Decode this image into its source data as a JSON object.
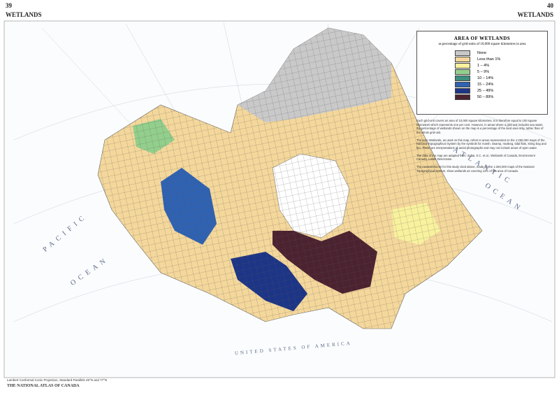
{
  "header": {
    "left_page": "39",
    "left_title": "WETLANDS",
    "right_page": "40",
    "right_title": "WETLANDS"
  },
  "legend": {
    "title": "AREA OF WETLANDS",
    "subtitle": "as percentage of grid-units of 10,000 square kilometres in area",
    "items": [
      {
        "label": "None",
        "color": "#c9c9c9"
      },
      {
        "label": "Less than 1%",
        "color": "#f4d79b"
      },
      {
        "label": "1 – 4%",
        "color": "#f8f29e"
      },
      {
        "label": "5 – 9%",
        "color": "#93cf8c"
      },
      {
        "label": "10 – 14%",
        "color": "#3d8f7d"
      },
      {
        "label": "15 – 24%",
        "color": "#2f62b2"
      },
      {
        "label": "25 – 49%",
        "color": "#1d3587"
      },
      {
        "label": "50 – 89%",
        "color": "#4b2330"
      }
    ]
  },
  "notes": [
    "Each grid-unit covers an area of 10,000 square kilometres. It is therefore equal to 100 square kilometres which represents one per cent. However, in areas where a grid-unit includes sea water, the percentage of wetlands shown on the map is a percentage of the land area only, rather than of the whole grid-unit.",
    "The term Wetlands, as used on this map, refers to areas represented on the 1:250,000 maps of the National Topographical System by the symbols for marsh, swamp, muskeg, tidal flats, string bog and fen. These are interpretations of aerial photographs and may not include areas of open water.",
    "The data of the map are adapted from: Zoltai, S.C. et al., Wetlands of Canada, Environment Canada, Lands Directorate.",
    "The measurements for this study cited above, made on the 1:250,000 maps of the National Topographical System, show wetlands as covering 14% of the area of Canada."
  ],
  "map_labels": {
    "pacific_1": "PACIFIC",
    "pacific_2": "OCEAN",
    "atlantic_1": "ATLANTIC",
    "atlantic_2": "OCEAN",
    "usa": "UNITED STATES OF AMERICA"
  },
  "footer": {
    "projection": "Lambert Conformal Conic Projection, Standard Parallels 49°N and 77°N",
    "atlas": "THE NATIONAL ATLAS OF CANADA"
  }
}
